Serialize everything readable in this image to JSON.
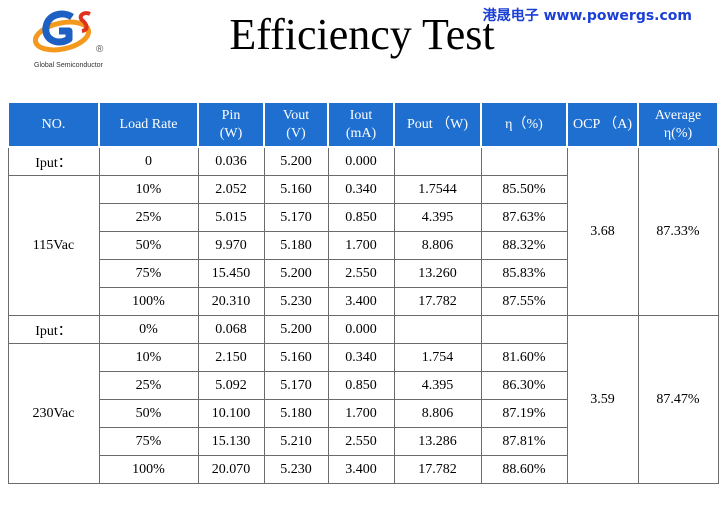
{
  "logo": {
    "mark": "GS",
    "registered": "®",
    "subtitle": "Global Semiconductor"
  },
  "title": "Efficiency Test",
  "watermark": "港晟电子  www.powergs.com",
  "table": {
    "headers": [
      {
        "line1": "NO.",
        "line2": ""
      },
      {
        "line1": "Load Rate",
        "line2": ""
      },
      {
        "line1": "Pin",
        "line2": "(W)"
      },
      {
        "line1": "Vout",
        "line2": "(V)"
      },
      {
        "line1": "Iout",
        "line2": "(mA)"
      },
      {
        "line1": "Pout （W)",
        "line2": ""
      },
      {
        "line1": "η（%)",
        "line2": ""
      },
      {
        "line1": "OCP （A)",
        "line2": ""
      },
      {
        "line1": "Average",
        "line2": "η(%)"
      }
    ],
    "groups": [
      {
        "input_row": {
          "label": "Iput：",
          "load": "0",
          "pin": "0.036",
          "vout": "5.200",
          "iout": "0.000"
        },
        "voltage": "115Vac",
        "rows": [
          {
            "load": "10%",
            "pin": "2.052",
            "vout": "5.160",
            "iout": "0.340",
            "pout": "1.7544",
            "eta": "85.50%"
          },
          {
            "load": "25%",
            "pin": "5.015",
            "vout": "5.170",
            "iout": "0.850",
            "pout": "4.395",
            "eta": "87.63%"
          },
          {
            "load": "50%",
            "pin": "9.970",
            "vout": "5.180",
            "iout": "1.700",
            "pout": "8.806",
            "eta": "88.32%"
          },
          {
            "load": "75%",
            "pin": "15.450",
            "vout": "5.200",
            "iout": "2.550",
            "pout": "13.260",
            "eta": "85.83%"
          },
          {
            "load": "100%",
            "pin": "20.310",
            "vout": "5.230",
            "iout": "3.400",
            "pout": "17.782",
            "eta": "87.55%"
          }
        ],
        "ocp": "3.68",
        "average": "87.33%"
      },
      {
        "input_row": {
          "label": "Iput：",
          "load": "0%",
          "pin": "0.068",
          "vout": "5.200",
          "iout": "0.000"
        },
        "voltage": "230Vac",
        "rows": [
          {
            "load": "10%",
            "pin": "2.150",
            "vout": "5.160",
            "iout": "0.340",
            "pout": "1.754",
            "eta": "81.60%"
          },
          {
            "load": "25%",
            "pin": "5.092",
            "vout": "5.170",
            "iout": "0.850",
            "pout": "4.395",
            "eta": "86.30%"
          },
          {
            "load": "50%",
            "pin": "10.100",
            "vout": "5.180",
            "iout": "1.700",
            "pout": "8.806",
            "eta": "87.19%"
          },
          {
            "load": "75%",
            "pin": "15.130",
            "vout": "5.210",
            "iout": "2.550",
            "pout": "13.286",
            "eta": "87.81%"
          },
          {
            "load": "100%",
            "pin": "20.070",
            "vout": "5.230",
            "iout": "3.400",
            "pout": "17.782",
            "eta": "88.60%"
          }
        ],
        "ocp": "3.59",
        "average": "87.47%"
      }
    ]
  }
}
